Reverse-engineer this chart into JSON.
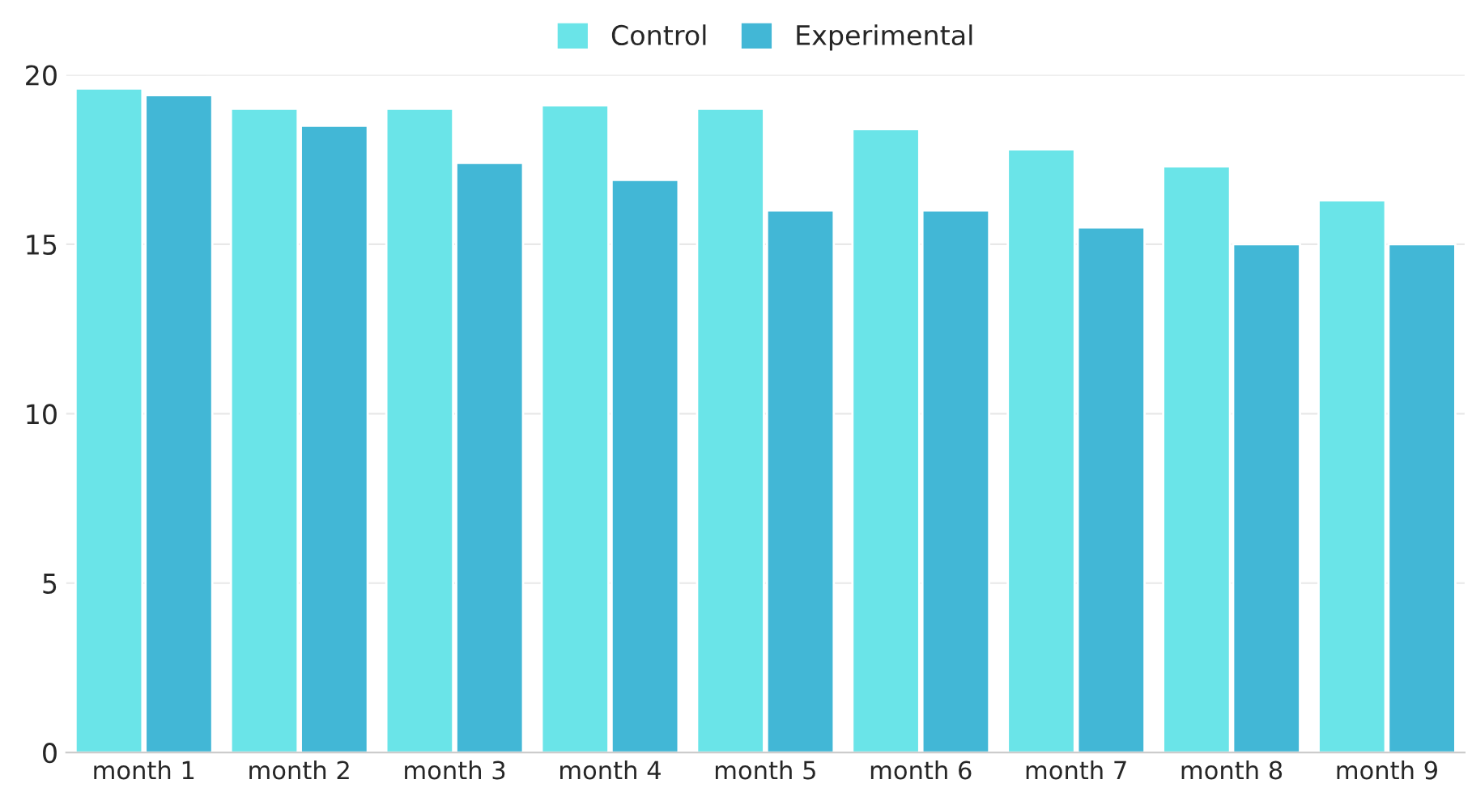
{
  "chart_data": {
    "type": "bar",
    "categories": [
      "month 1",
      "month 2",
      "month 3",
      "month 4",
      "month 5",
      "month 6",
      "month 7",
      "month 8",
      "month 9"
    ],
    "series": [
      {
        "name": "Control",
        "color": "#6ae4e8",
        "values": [
          19.6,
          19.0,
          19.0,
          19.1,
          19.0,
          18.4,
          17.8,
          17.3,
          16.3
        ]
      },
      {
        "name": "Experimental",
        "color": "#42b7d6",
        "values": [
          19.4,
          18.5,
          17.4,
          16.9,
          16.0,
          16.0,
          15.5,
          15.0,
          15.0
        ]
      }
    ],
    "ylim": [
      0,
      20
    ],
    "yticks": [
      0,
      5,
      10,
      15,
      20
    ],
    "grid": "y",
    "legend": "top"
  }
}
